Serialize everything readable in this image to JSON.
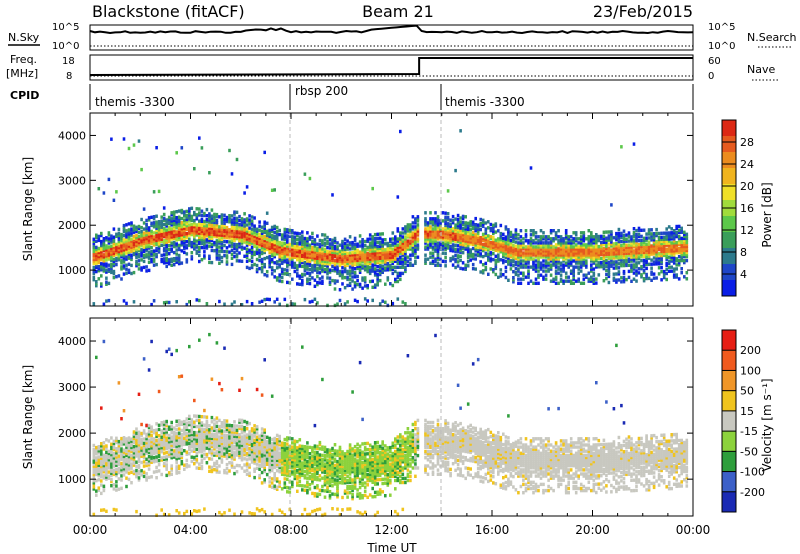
{
  "header": {
    "station": "Blackstone (fitACF)",
    "beam": "Beam 21",
    "date": "23/Feb/2015"
  },
  "top_panels": {
    "nsky_label": "N.Sky",
    "nsearch_label": "N.Search",
    "freq_label_line1": "Freq.",
    "freq_label_line2": "[MHz]",
    "nave_label": "Nave",
    "cpid_label": "CPID",
    "noise_ticks": [
      "10^5",
      "10^0"
    ],
    "freq_ticks": [
      "18",
      "8"
    ],
    "nave_ticks": [
      "60",
      "0"
    ],
    "cpid_segments": [
      {
        "label": "themis -3300",
        "start_hour": 0,
        "end_hour": 8
      },
      {
        "label": "rbsp 200",
        "start_hour": 8,
        "end_hour": 14
      },
      {
        "label": "themis -3300",
        "start_hour": 14,
        "end_hour": 24
      }
    ],
    "freq_step": {
      "before": 8.5,
      "after": 18,
      "switch_hour": 13.1
    }
  },
  "chart_data": [
    {
      "type": "heatmap",
      "panel": "power",
      "ylabel": "Slant Range [km]",
      "yticks": [
        "1000",
        "2000",
        "3000",
        "4000"
      ],
      "ylim": [
        200,
        4500
      ],
      "xlim": [
        0,
        24
      ],
      "colorbar_label": "Power [dB]",
      "colorbar_ticks": [
        "4",
        "8",
        "12",
        "16",
        "20",
        "24",
        "28"
      ],
      "colors": [
        "#0a1ee6",
        "#1e46c8",
        "#2c7a8c",
        "#3a9e5a",
        "#5cc84a",
        "#a0dc3c",
        "#f0e028",
        "#f0b41e",
        "#ec8c1e",
        "#e65a1e",
        "#dc2814"
      ],
      "backscatter_band": [
        {
          "hour": 0.2,
          "range_km": 1300
        },
        {
          "hour": 2.0,
          "range_km": 1650
        },
        {
          "hour": 4.0,
          "range_km": 1900
        },
        {
          "hour": 6.0,
          "range_km": 1800
        },
        {
          "hour": 7.5,
          "range_km": 1450
        },
        {
          "hour": 8.0,
          "range_km": 1400
        },
        {
          "hour": 10.0,
          "range_km": 1250
        },
        {
          "hour": 12.0,
          "range_km": 1350
        },
        {
          "hour": 13.0,
          "range_km": 1800
        },
        {
          "hour": 14.0,
          "range_km": 1800
        },
        {
          "hour": 15.5,
          "range_km": 1650
        },
        {
          "hour": 17.0,
          "range_km": 1400
        },
        {
          "hour": 20.0,
          "range_km": 1400
        },
        {
          "hour": 23.5,
          "range_km": 1500
        }
      ]
    },
    {
      "type": "heatmap",
      "panel": "velocity",
      "ylabel": "Slant Range [km]",
      "yticks": [
        "1000",
        "2000",
        "3000",
        "4000"
      ],
      "ylim": [
        200,
        4500
      ],
      "xlim": [
        0,
        24
      ],
      "xticks": [
        "00:00",
        "04:00",
        "08:00",
        "12:00",
        "16:00",
        "20:00",
        "00:00"
      ],
      "xlabel": "Time UT",
      "colorbar_label": "Velocity [m s⁻¹]",
      "colorbar_ticks": [
        "200",
        "100",
        "50",
        "15",
        "-15",
        "-50",
        "-100",
        "-200"
      ],
      "colors": [
        "#1a2ab4",
        "#3c60c8",
        "#2e9e3c",
        "#8cd23c",
        "#c8c8c0",
        "#f0c41e",
        "#f09628",
        "#f05a1e",
        "#e61e14"
      ]
    }
  ]
}
